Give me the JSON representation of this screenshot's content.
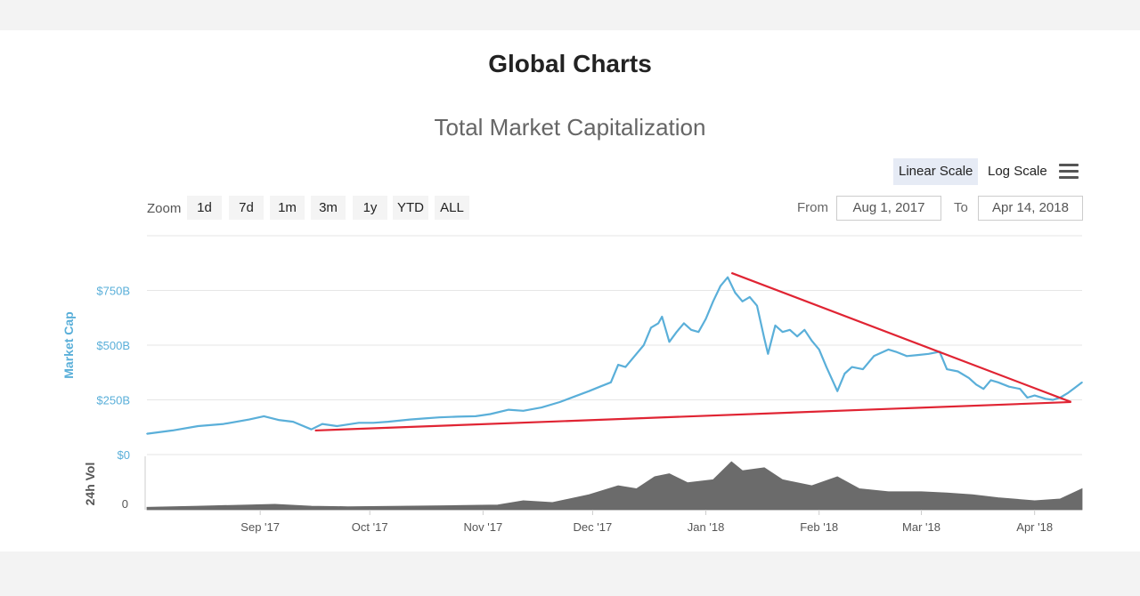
{
  "page": {
    "title": "Global Charts"
  },
  "toolbar": {
    "scale_linear": "Linear Scale",
    "scale_log": "Log Scale",
    "active_scale": "linear",
    "menu_icon": "hamburger-menu-icon"
  },
  "zoom": {
    "label": "Zoom",
    "buttons": [
      "1d",
      "7d",
      "1m",
      "3m",
      "1y",
      "YTD",
      "ALL"
    ]
  },
  "range": {
    "from_label": "From",
    "from_value": "Aug 1, 2017",
    "to_label": "To",
    "to_value": "Apr 14, 2018"
  },
  "chart_data": {
    "type": "line",
    "title": "Total Market Capitalization",
    "ylabel": "Market Cap",
    "ylabel_volume": "24h Vol",
    "ylim": [
      0,
      1000
    ],
    "y_ticks": [
      {
        "value": 0,
        "label": "$0"
      },
      {
        "value": 250,
        "label": "$250B"
      },
      {
        "value": 500,
        "label": "$500B"
      },
      {
        "value": 750,
        "label": "$750B"
      }
    ],
    "volume_ticks": [
      {
        "value": 0,
        "label": "0"
      }
    ],
    "x_range": [
      "2017-08-01",
      "2018-04-14"
    ],
    "x_ticks": [
      {
        "date": "2017-09-01",
        "label": "Sep '17"
      },
      {
        "date": "2017-10-01",
        "label": "Oct '17"
      },
      {
        "date": "2017-11-01",
        "label": "Nov '17"
      },
      {
        "date": "2017-12-01",
        "label": "Dec '17"
      },
      {
        "date": "2018-01-01",
        "label": "Jan '18"
      },
      {
        "date": "2018-02-01",
        "label": "Feb '18"
      },
      {
        "date": "2018-03-01",
        "label": "Mar '18"
      },
      {
        "date": "2018-04-01",
        "label": "Apr '18"
      }
    ],
    "grid": true,
    "colors": {
      "market_cap": "#5aafd9",
      "volume": "#6b6b6b",
      "trendline": "#e02433",
      "axis_label": "#5aafd9"
    },
    "series": [
      {
        "name": "Market Cap",
        "unit": "$B",
        "points": [
          [
            "2017-08-01",
            95
          ],
          [
            "2017-08-08",
            110
          ],
          [
            "2017-08-15",
            130
          ],
          [
            "2017-08-22",
            140
          ],
          [
            "2017-08-29",
            160
          ],
          [
            "2017-09-02",
            175
          ],
          [
            "2017-09-06",
            158
          ],
          [
            "2017-09-10",
            150
          ],
          [
            "2017-09-15",
            115
          ],
          [
            "2017-09-18",
            140
          ],
          [
            "2017-09-22",
            130
          ],
          [
            "2017-09-28",
            145
          ],
          [
            "2017-10-02",
            145
          ],
          [
            "2017-10-06",
            150
          ],
          [
            "2017-10-12",
            160
          ],
          [
            "2017-10-16",
            165
          ],
          [
            "2017-10-20",
            170
          ],
          [
            "2017-10-25",
            173
          ],
          [
            "2017-10-30",
            175
          ],
          [
            "2017-11-03",
            185
          ],
          [
            "2017-11-08",
            205
          ],
          [
            "2017-11-12",
            200
          ],
          [
            "2017-11-17",
            215
          ],
          [
            "2017-11-22",
            240
          ],
          [
            "2017-11-26",
            265
          ],
          [
            "2017-11-30",
            290
          ],
          [
            "2017-12-03",
            310
          ],
          [
            "2017-12-06",
            330
          ],
          [
            "2017-12-08",
            410
          ],
          [
            "2017-12-10",
            400
          ],
          [
            "2017-12-13",
            460
          ],
          [
            "2017-12-15",
            500
          ],
          [
            "2017-12-17",
            580
          ],
          [
            "2017-12-19",
            600
          ],
          [
            "2017-12-20",
            630
          ],
          [
            "2017-12-22",
            515
          ],
          [
            "2017-12-24",
            560
          ],
          [
            "2017-12-26",
            600
          ],
          [
            "2017-12-28",
            570
          ],
          [
            "2017-12-30",
            560
          ],
          [
            "2018-01-01",
            620
          ],
          [
            "2018-01-03",
            700
          ],
          [
            "2018-01-05",
            770
          ],
          [
            "2018-01-07",
            810
          ],
          [
            "2018-01-09",
            740
          ],
          [
            "2018-01-11",
            700
          ],
          [
            "2018-01-13",
            720
          ],
          [
            "2018-01-15",
            680
          ],
          [
            "2018-01-17",
            530
          ],
          [
            "2018-01-18",
            460
          ],
          [
            "2018-01-20",
            590
          ],
          [
            "2018-01-22",
            560
          ],
          [
            "2018-01-24",
            570
          ],
          [
            "2018-01-26",
            540
          ],
          [
            "2018-01-28",
            570
          ],
          [
            "2018-01-30",
            520
          ],
          [
            "2018-02-01",
            480
          ],
          [
            "2018-02-03",
            400
          ],
          [
            "2018-02-06",
            290
          ],
          [
            "2018-02-08",
            370
          ],
          [
            "2018-02-10",
            400
          ],
          [
            "2018-02-13",
            390
          ],
          [
            "2018-02-16",
            450
          ],
          [
            "2018-02-20",
            480
          ],
          [
            "2018-02-22",
            470
          ],
          [
            "2018-02-25",
            450
          ],
          [
            "2018-02-28",
            455
          ],
          [
            "2018-03-03",
            460
          ],
          [
            "2018-03-06",
            470
          ],
          [
            "2018-03-08",
            390
          ],
          [
            "2018-03-11",
            380
          ],
          [
            "2018-03-14",
            350
          ],
          [
            "2018-03-16",
            320
          ],
          [
            "2018-03-18",
            300
          ],
          [
            "2018-03-20",
            340
          ],
          [
            "2018-03-22",
            330
          ],
          [
            "2018-03-25",
            310
          ],
          [
            "2018-03-28",
            300
          ],
          [
            "2018-03-30",
            260
          ],
          [
            "2018-04-01",
            270
          ],
          [
            "2018-04-04",
            255
          ],
          [
            "2018-04-06",
            250
          ],
          [
            "2018-04-08",
            260
          ],
          [
            "2018-04-10",
            280
          ],
          [
            "2018-04-12",
            305
          ],
          [
            "2018-04-14",
            330
          ]
        ]
      },
      {
        "name": "24h Vol",
        "unit": "relative",
        "points": [
          [
            "2017-08-01",
            4
          ],
          [
            "2017-08-15",
            6
          ],
          [
            "2017-08-29",
            8
          ],
          [
            "2017-09-05",
            9
          ],
          [
            "2017-09-15",
            6
          ],
          [
            "2017-09-25",
            5
          ],
          [
            "2017-10-10",
            6
          ],
          [
            "2017-10-25",
            7
          ],
          [
            "2017-11-05",
            8
          ],
          [
            "2017-11-12",
            15
          ],
          [
            "2017-11-20",
            12
          ],
          [
            "2017-11-30",
            25
          ],
          [
            "2017-12-08",
            40
          ],
          [
            "2017-12-13",
            35
          ],
          [
            "2017-12-18",
            55
          ],
          [
            "2017-12-22",
            60
          ],
          [
            "2017-12-27",
            45
          ],
          [
            "2018-01-03",
            50
          ],
          [
            "2018-01-08",
            80
          ],
          [
            "2018-01-11",
            65
          ],
          [
            "2018-01-17",
            70
          ],
          [
            "2018-01-22",
            50
          ],
          [
            "2018-01-30",
            40
          ],
          [
            "2018-02-06",
            55
          ],
          [
            "2018-02-12",
            35
          ],
          [
            "2018-02-20",
            30
          ],
          [
            "2018-03-01",
            30
          ],
          [
            "2018-03-08",
            28
          ],
          [
            "2018-03-15",
            25
          ],
          [
            "2018-03-22",
            20
          ],
          [
            "2018-04-01",
            15
          ],
          [
            "2018-04-08",
            18
          ],
          [
            "2018-04-14",
            35
          ]
        ]
      }
    ],
    "annotations": [
      {
        "type": "trendline",
        "from": [
          "2018-01-08",
          830
        ],
        "to": [
          "2018-04-11",
          240
        ]
      },
      {
        "type": "trendline",
        "from": [
          "2017-09-16",
          110
        ],
        "to": [
          "2018-04-11",
          240
        ]
      }
    ]
  }
}
